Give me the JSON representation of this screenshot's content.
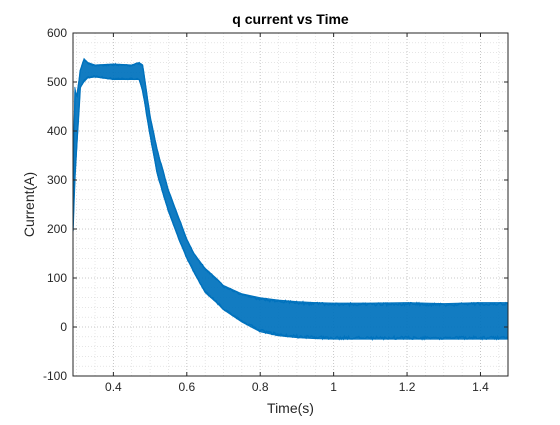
{
  "chart_data": {
    "type": "line",
    "title": "q current vs Time",
    "xlabel": "Time(s)",
    "ylabel": "Current(A)",
    "xlim": [
      0.29,
      1.475
    ],
    "ylim": [
      -100,
      600
    ],
    "xticks": [
      0.4,
      0.6,
      0.8,
      1,
      1.2,
      1.4
    ],
    "xtick_labels": [
      "0.4",
      "0.6",
      "0.8",
      "1",
      "1.2",
      "1.4"
    ],
    "yticks": [
      -100,
      0,
      100,
      200,
      300,
      400,
      500,
      600
    ],
    "ytick_labels": [
      "-100",
      "0",
      "100",
      "200",
      "300",
      "400",
      "500",
      "600"
    ],
    "grid": "dotted, with minor gridlines",
    "legend": "none",
    "series": [
      {
        "color": "#0072BD",
        "note_style": "dense noisy signal drawn as an envelope band",
        "x": [
          0.29,
          0.295,
          0.3,
          0.31,
          0.32,
          0.33,
          0.35,
          0.4,
          0.45,
          0.47,
          0.48,
          0.5,
          0.52,
          0.55,
          0.58,
          0.6,
          0.62,
          0.65,
          0.68,
          0.7,
          0.75,
          0.8,
          0.85,
          0.9,
          0.95,
          1.0,
          1.1,
          1.2,
          1.3,
          1.4,
          1.475
        ],
        "upper": [
          260,
          490,
          470,
          525,
          548,
          540,
          535,
          537,
          535,
          540,
          535,
          430,
          360,
          280,
          220,
          180,
          150,
          120,
          100,
          85,
          68,
          60,
          55,
          52,
          50,
          49,
          49,
          50,
          48,
          50,
          50
        ],
        "lower": [
          195,
          300,
          360,
          490,
          500,
          508,
          510,
          505,
          505,
          505,
          480,
          390,
          310,
          235,
          175,
          140,
          110,
          70,
          50,
          35,
          10,
          -10,
          -18,
          -22,
          -24,
          -25,
          -25,
          -25,
          -25,
          -25,
          -25
        ]
      }
    ]
  }
}
